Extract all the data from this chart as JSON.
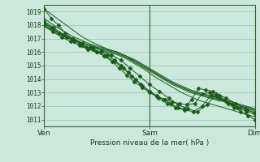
{
  "background_color": "#cce8dc",
  "grid_color": "#99ccbb",
  "line_color": "#1a5c1a",
  "marker_color": "#1a5c1a",
  "ylim": [
    1010.5,
    1019.5
  ],
  "yticks": [
    1011,
    1012,
    1013,
    1014,
    1015,
    1016,
    1017,
    1018,
    1019
  ],
  "xtick_labels": [
    "Ven",
    "Sam",
    "Dim"
  ],
  "xtick_positions": [
    0.0,
    1.0,
    2.0
  ],
  "xlabel": "Pression niveau de la mer( hPa )",
  "xlim": [
    0,
    2
  ],
  "smooth_series": [
    [
      1019.2,
      1018.7,
      1018.2,
      1017.7,
      1017.2,
      1016.8,
      1016.5,
      1016.2,
      1016.0,
      1015.7,
      1015.3,
      1014.9,
      1014.5,
      1014.1,
      1013.7,
      1013.4,
      1013.1,
      1012.9,
      1012.7,
      1012.5,
      1012.3,
      1012.1,
      1011.9,
      1011.6
    ],
    [
      1018.5,
      1018.0,
      1017.6,
      1017.2,
      1016.9,
      1016.6,
      1016.4,
      1016.2,
      1016.0,
      1015.7,
      1015.4,
      1015.0,
      1014.6,
      1014.2,
      1013.8,
      1013.5,
      1013.2,
      1013.0,
      1012.8,
      1012.6,
      1012.4,
      1012.2,
      1012.0,
      1011.8
    ],
    [
      1018.1,
      1017.7,
      1017.3,
      1017.0,
      1016.7,
      1016.5,
      1016.3,
      1016.1,
      1015.9,
      1015.6,
      1015.3,
      1014.9,
      1014.5,
      1014.1,
      1013.7,
      1013.4,
      1013.1,
      1012.9,
      1012.7,
      1012.5,
      1012.4,
      1012.2,
      1012.0,
      1011.8
    ],
    [
      1017.9,
      1017.5,
      1017.2,
      1016.9,
      1016.7,
      1016.5,
      1016.3,
      1016.1,
      1015.9,
      1015.6,
      1015.2,
      1014.8,
      1014.4,
      1014.0,
      1013.6,
      1013.3,
      1013.0,
      1012.8,
      1012.6,
      1012.4,
      1012.3,
      1012.1,
      1011.9,
      1011.7
    ],
    [
      1018.0,
      1017.6,
      1017.3,
      1017.0,
      1016.7,
      1016.5,
      1016.2,
      1016.0,
      1015.8,
      1015.5,
      1015.1,
      1014.7,
      1014.2,
      1013.8,
      1013.4,
      1013.0,
      1012.7,
      1012.4,
      1012.2,
      1012.0,
      1011.8,
      1011.6,
      1011.4,
      1011.2
    ]
  ],
  "marker_series": [
    [
      1019.2,
      1018.5,
      1018.0,
      1017.4,
      1017.0,
      1016.7,
      1016.4,
      1016.2,
      1016.0,
      1015.8,
      1015.4,
      1015.0,
      1014.5,
      1014.0,
      1013.5,
      1013.1,
      1012.8,
      1012.5,
      1012.2,
      1011.9,
      1011.8,
      1012.5,
      1013.3,
      1013.2,
      1013.1,
      1012.8,
      1012.3,
      1011.9,
      1011.6,
      1011.3,
      1011.0
    ],
    [
      1018.2,
      1017.8,
      1017.4,
      1017.1,
      1016.8,
      1016.5,
      1016.3,
      1016.0,
      1015.7,
      1015.3,
      1014.8,
      1014.3,
      1013.8,
      1013.4,
      1013.0,
      1012.7,
      1012.5,
      1012.3,
      1012.2,
      1012.1,
      1012.2,
      1012.9,
      1013.0,
      1012.7,
      1012.4,
      1012.1,
      1011.9,
      1011.7,
      1011.5
    ],
    [
      1018.0,
      1017.5,
      1017.1,
      1016.8,
      1016.5,
      1016.2,
      1016.0,
      1015.7,
      1015.3,
      1014.8,
      1014.2,
      1013.6,
      1013.1,
      1012.6,
      1012.2,
      1011.9,
      1011.7,
      1011.6,
      1012.0,
      1012.8,
      1012.6,
      1012.2,
      1011.9,
      1011.6,
      1011.4
    ],
    [
      1018.3,
      1017.8,
      1017.3,
      1017.0,
      1016.7,
      1016.4,
      1016.1,
      1015.8,
      1015.4,
      1014.8,
      1014.2,
      1013.6,
      1013.1,
      1012.6,
      1012.1,
      1011.8,
      1011.6,
      1012.1,
      1012.9,
      1012.6,
      1012.2,
      1011.8,
      1011.5
    ]
  ]
}
